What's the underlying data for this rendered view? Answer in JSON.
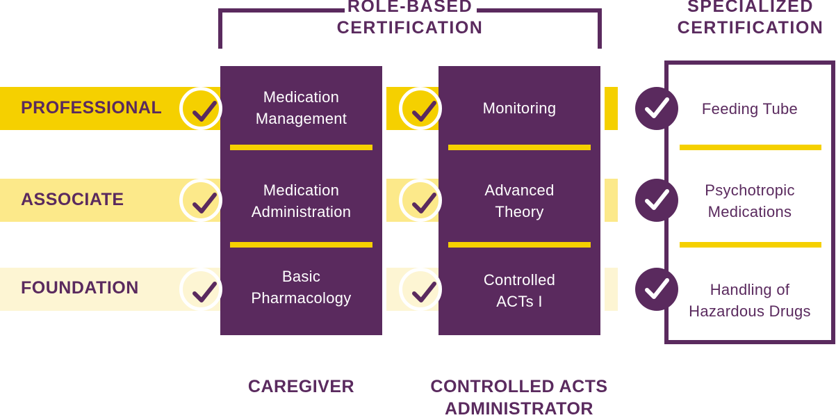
{
  "headings": {
    "role_based_line1": "ROLE-BASED",
    "role_based_line2": "CERTIFICATION",
    "specialized_line1": "SPECIALIZED",
    "specialized_line2": "CERTIFICATION"
  },
  "tiers": {
    "professional": "PROFESSIONAL",
    "associate": "ASSOCIATE",
    "foundation": "FOUNDATION"
  },
  "caregiver": {
    "label": "CAREGIVER",
    "cells": [
      [
        "Medication",
        "Management"
      ],
      [
        "Medication",
        "Administration"
      ],
      [
        "Basic",
        "Pharmacology"
      ]
    ]
  },
  "controlled_acts": {
    "label_line1": "CONTROLLED ACTS",
    "label_line2": "ADMINISTRATOR",
    "cells": [
      [
        "Monitoring"
      ],
      [
        "Advanced",
        "Theory"
      ],
      [
        "Controlled",
        "ACTs I"
      ]
    ]
  },
  "specialized": {
    "cells": [
      [
        "Feeding Tube"
      ],
      [
        "Psychotropic",
        "Medications"
      ],
      [
        "Handling of",
        "Hazardous Drugs"
      ]
    ]
  },
  "colors": {
    "purple": "#5a2a5e",
    "yellow_strong": "#f5d000",
    "yellow_mid": "#fce98a",
    "yellow_light": "#fdf5d3"
  },
  "icons": {
    "check": "check-icon"
  }
}
